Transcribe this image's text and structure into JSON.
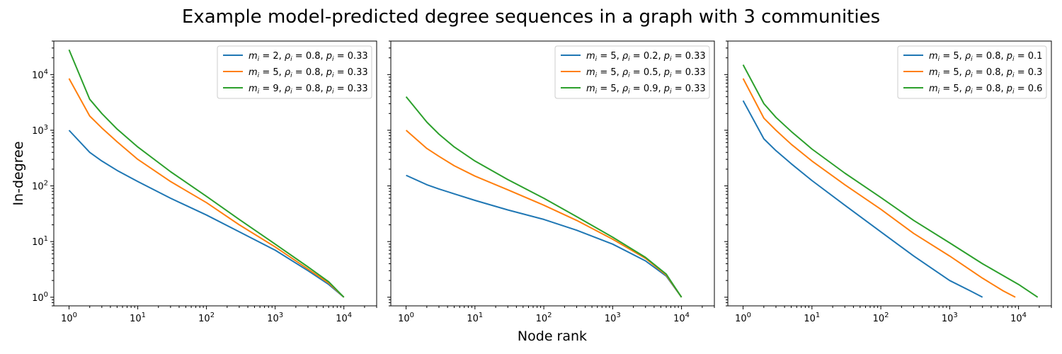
{
  "figure": {
    "title": "Example model-predicted degree sequences in a graph with 3 communities",
    "xlabel": "Node rank",
    "ylabel": "In-degree"
  },
  "colors": {
    "series": [
      "#1f77b4",
      "#ff7f0e",
      "#2ca02c"
    ],
    "axes": "#000000",
    "legend_frame": "#cccccc"
  },
  "chart_data": [
    {
      "type": "line",
      "xscale": "log",
      "yscale": "log",
      "xlim": [
        0.6,
        30000
      ],
      "ylim": [
        0.7,
        40000
      ],
      "xticks": [
        "10^0",
        "10^1",
        "10^2",
        "10^3",
        "10^4"
      ],
      "yticks": [
        "10^0",
        "10^1",
        "10^2",
        "10^3",
        "10^4"
      ],
      "legend_position": "top-right",
      "grid": false,
      "series": [
        {
          "name": "m_i = 2, ρ_i = 0.8, p_i = 0.33",
          "x": [
            1,
            2,
            3,
            5,
            10,
            30,
            100,
            300,
            1000,
            3000,
            6000,
            10000
          ],
          "y": [
            1000,
            400,
            280,
            190,
            120,
            60,
            30,
            15,
            7,
            3,
            1.7,
            1
          ]
        },
        {
          "name": "m_i = 5, ρ_i = 0.8, p_i = 0.33",
          "x": [
            1,
            2,
            3,
            5,
            10,
            30,
            100,
            300,
            1000,
            3000,
            6000,
            10000
          ],
          "y": [
            8500,
            1800,
            1100,
            620,
            300,
            120,
            50,
            20,
            8,
            3.2,
            1.8,
            1
          ]
        },
        {
          "name": "m_i = 9, ρ_i = 0.8, p_i = 0.33",
          "x": [
            1,
            2,
            3,
            5,
            10,
            30,
            100,
            300,
            1000,
            3000,
            6000,
            10000
          ],
          "y": [
            28000,
            3600,
            2000,
            1050,
            500,
            180,
            65,
            25,
            9,
            3.5,
            1.9,
            1
          ]
        }
      ]
    },
    {
      "type": "line",
      "xscale": "log",
      "yscale": "log",
      "xlim": [
        0.6,
        30000
      ],
      "ylim": [
        0.7,
        40000
      ],
      "xticks": [
        "10^0",
        "10^1",
        "10^2",
        "10^3",
        "10^4"
      ],
      "yticks": [],
      "legend_position": "top-right",
      "grid": false,
      "series": [
        {
          "name": "m_i = 5, ρ_i = 0.2, p_i = 0.33",
          "x": [
            1,
            2,
            3,
            5,
            10,
            30,
            100,
            300,
            1000,
            3000,
            6000,
            10000
          ],
          "y": [
            155,
            105,
            88,
            72,
            55,
            37,
            25,
            16,
            9,
            4.5,
            2.4,
            1
          ]
        },
        {
          "name": "m_i = 5, ρ_i = 0.5, p_i = 0.33",
          "x": [
            1,
            2,
            3,
            5,
            10,
            30,
            100,
            300,
            1000,
            3000,
            6000,
            10000
          ],
          "y": [
            1000,
            470,
            340,
            230,
            150,
            85,
            45,
            24,
            11,
            5,
            2.5,
            1
          ]
        },
        {
          "name": "m_i = 5, ρ_i = 0.9, p_i = 0.33",
          "x": [
            1,
            2,
            3,
            5,
            10,
            30,
            100,
            300,
            1000,
            3000,
            6000,
            10000
          ],
          "y": [
            4000,
            1400,
            850,
            500,
            280,
            130,
            60,
            28,
            12,
            5.2,
            2.6,
            1
          ]
        }
      ]
    },
    {
      "type": "line",
      "xscale": "log",
      "yscale": "log",
      "xlim": [
        0.6,
        30000
      ],
      "ylim": [
        0.7,
        40000
      ],
      "xticks": [
        "10^0",
        "10^1",
        "10^2",
        "10^3",
        "10^4"
      ],
      "yticks": [],
      "legend_position": "top-right",
      "grid": false,
      "series": [
        {
          "name": "m_i = 5, ρ_i = 0.8, p_i = 0.1",
          "x": [
            1,
            2,
            3,
            5,
            10,
            30,
            100,
            300,
            1000,
            2000,
            3000
          ],
          "y": [
            3400,
            700,
            430,
            250,
            125,
            45,
            15,
            5.5,
            2,
            1.3,
            1
          ]
        },
        {
          "name": "m_i = 5, ρ_i = 0.8, p_i = 0.3",
          "x": [
            1,
            2,
            3,
            5,
            10,
            30,
            100,
            300,
            1000,
            3000,
            6000,
            9000
          ],
          "y": [
            8500,
            1650,
            1000,
            560,
            280,
            105,
            38,
            14,
            5.5,
            2.2,
            1.3,
            1
          ]
        },
        {
          "name": "m_i = 5, ρ_i = 0.8, p_i = 0.6",
          "x": [
            1,
            2,
            3,
            5,
            10,
            30,
            100,
            300,
            1000,
            3000,
            10000,
            19000
          ],
          "y": [
            15000,
            3000,
            1700,
            950,
            460,
            170,
            62,
            24,
            9.5,
            4,
            1.7,
            1
          ]
        }
      ]
    }
  ]
}
